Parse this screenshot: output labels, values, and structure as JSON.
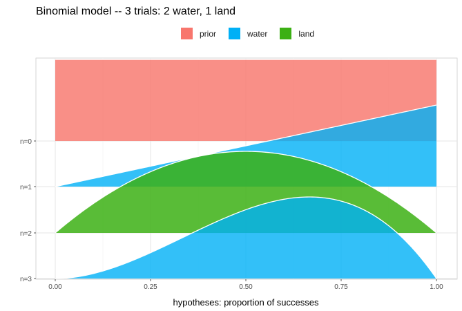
{
  "chart_data": {
    "type": "area",
    "title": "Binomial model -- 3 trials: 2 water, 1 land",
    "xlabel": "hypotheses: proportion of successes",
    "ylabel": "",
    "xlim": [
      0,
      1
    ],
    "x_ticks": [
      "0.00",
      "0.25",
      "0.50",
      "0.75",
      "1.00"
    ],
    "y_ticks": [
      "n=0",
      "n=1",
      "n=2",
      "n=3"
    ],
    "grid": true,
    "legend": {
      "position": "top",
      "entries": [
        {
          "key": "prior",
          "label": "prior",
          "color": "#F8766D"
        },
        {
          "key": "water",
          "label": "water",
          "color": "#00B0F6"
        },
        {
          "key": "land",
          "label": "land",
          "color": "#3CB014"
        }
      ]
    },
    "series": [
      {
        "name": "prior",
        "row": "n=0",
        "distribution": "uniform",
        "note_values": [
          1,
          1
        ]
      },
      {
        "name": "water",
        "row": "n=0 to n=1",
        "distribution": "p"
      },
      {
        "name": "land",
        "row": "n=1 to n=2",
        "distribution": "p*(1-p)"
      },
      {
        "name": "water",
        "row": "n=2 to n=3",
        "distribution": "p^2*(1-p)"
      }
    ]
  }
}
